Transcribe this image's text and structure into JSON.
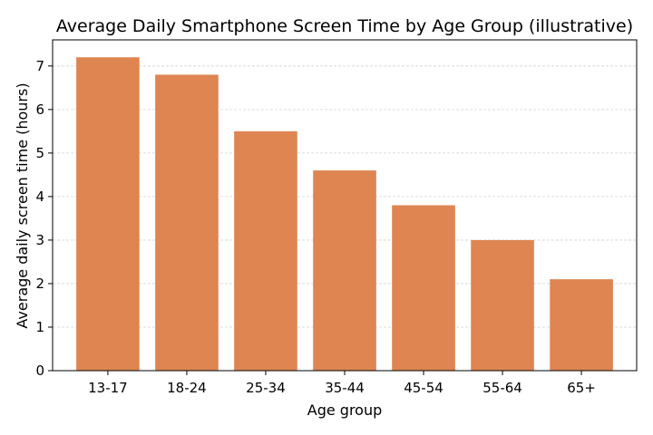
{
  "chart_data": {
    "type": "bar",
    "title": "Average Daily Smartphone Screen Time by Age Group (illustrative)",
    "xlabel": "Age group",
    "ylabel": "Average daily screen time (hours)",
    "categories": [
      "13-17",
      "18-24",
      "25-34",
      "35-44",
      "45-54",
      "55-64",
      "65+"
    ],
    "values": [
      7.2,
      6.8,
      5.5,
      4.6,
      3.8,
      3.0,
      2.1
    ],
    "ylim": [
      0,
      7.6
    ],
    "yticks": [
      0,
      1,
      2,
      3,
      4,
      5,
      6,
      7
    ],
    "grid": "horizontal dashed",
    "legend": "none",
    "colors": {
      "bar": "#de8552",
      "grid": "#d3d3d3",
      "axis": "#000000"
    }
  }
}
